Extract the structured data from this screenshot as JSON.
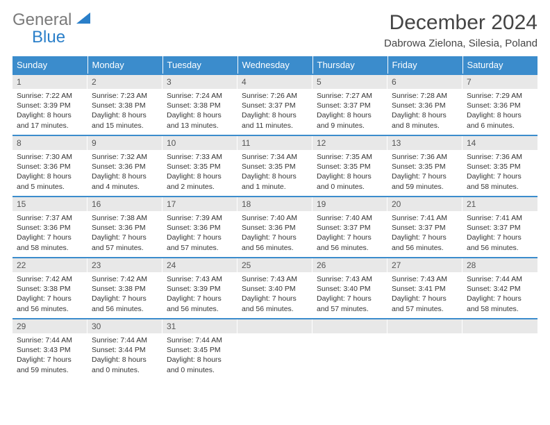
{
  "logo": {
    "line1": "General",
    "line2": "Blue"
  },
  "title": "December 2024",
  "location": "Dabrowa Zielona, Silesia, Poland",
  "colors": {
    "header_bg": "#3b8ccc",
    "header_fg": "#ffffff",
    "daynum_bg": "#e8e8e8",
    "row_border": "#3b8ccc",
    "logo_gray": "#7a7a7a",
    "logo_blue": "#2a7fc9"
  },
  "weekdays": [
    "Sunday",
    "Monday",
    "Tuesday",
    "Wednesday",
    "Thursday",
    "Friday",
    "Saturday"
  ],
  "weeks": [
    [
      {
        "n": "1",
        "sunrise": "7:22 AM",
        "sunset": "3:39 PM",
        "daylight": "8 hours and 17 minutes."
      },
      {
        "n": "2",
        "sunrise": "7:23 AM",
        "sunset": "3:38 PM",
        "daylight": "8 hours and 15 minutes."
      },
      {
        "n": "3",
        "sunrise": "7:24 AM",
        "sunset": "3:38 PM",
        "daylight": "8 hours and 13 minutes."
      },
      {
        "n": "4",
        "sunrise": "7:26 AM",
        "sunset": "3:37 PM",
        "daylight": "8 hours and 11 minutes."
      },
      {
        "n": "5",
        "sunrise": "7:27 AM",
        "sunset": "3:37 PM",
        "daylight": "8 hours and 9 minutes."
      },
      {
        "n": "6",
        "sunrise": "7:28 AM",
        "sunset": "3:36 PM",
        "daylight": "8 hours and 8 minutes."
      },
      {
        "n": "7",
        "sunrise": "7:29 AM",
        "sunset": "3:36 PM",
        "daylight": "8 hours and 6 minutes."
      }
    ],
    [
      {
        "n": "8",
        "sunrise": "7:30 AM",
        "sunset": "3:36 PM",
        "daylight": "8 hours and 5 minutes."
      },
      {
        "n": "9",
        "sunrise": "7:32 AM",
        "sunset": "3:36 PM",
        "daylight": "8 hours and 4 minutes."
      },
      {
        "n": "10",
        "sunrise": "7:33 AM",
        "sunset": "3:35 PM",
        "daylight": "8 hours and 2 minutes."
      },
      {
        "n": "11",
        "sunrise": "7:34 AM",
        "sunset": "3:35 PM",
        "daylight": "8 hours and 1 minute."
      },
      {
        "n": "12",
        "sunrise": "7:35 AM",
        "sunset": "3:35 PM",
        "daylight": "8 hours and 0 minutes."
      },
      {
        "n": "13",
        "sunrise": "7:36 AM",
        "sunset": "3:35 PM",
        "daylight": "7 hours and 59 minutes."
      },
      {
        "n": "14",
        "sunrise": "7:36 AM",
        "sunset": "3:35 PM",
        "daylight": "7 hours and 58 minutes."
      }
    ],
    [
      {
        "n": "15",
        "sunrise": "7:37 AM",
        "sunset": "3:36 PM",
        "daylight": "7 hours and 58 minutes."
      },
      {
        "n": "16",
        "sunrise": "7:38 AM",
        "sunset": "3:36 PM",
        "daylight": "7 hours and 57 minutes."
      },
      {
        "n": "17",
        "sunrise": "7:39 AM",
        "sunset": "3:36 PM",
        "daylight": "7 hours and 57 minutes."
      },
      {
        "n": "18",
        "sunrise": "7:40 AM",
        "sunset": "3:36 PM",
        "daylight": "7 hours and 56 minutes."
      },
      {
        "n": "19",
        "sunrise": "7:40 AM",
        "sunset": "3:37 PM",
        "daylight": "7 hours and 56 minutes."
      },
      {
        "n": "20",
        "sunrise": "7:41 AM",
        "sunset": "3:37 PM",
        "daylight": "7 hours and 56 minutes."
      },
      {
        "n": "21",
        "sunrise": "7:41 AM",
        "sunset": "3:37 PM",
        "daylight": "7 hours and 56 minutes."
      }
    ],
    [
      {
        "n": "22",
        "sunrise": "7:42 AM",
        "sunset": "3:38 PM",
        "daylight": "7 hours and 56 minutes."
      },
      {
        "n": "23",
        "sunrise": "7:42 AM",
        "sunset": "3:38 PM",
        "daylight": "7 hours and 56 minutes."
      },
      {
        "n": "24",
        "sunrise": "7:43 AM",
        "sunset": "3:39 PM",
        "daylight": "7 hours and 56 minutes."
      },
      {
        "n": "25",
        "sunrise": "7:43 AM",
        "sunset": "3:40 PM",
        "daylight": "7 hours and 56 minutes."
      },
      {
        "n": "26",
        "sunrise": "7:43 AM",
        "sunset": "3:40 PM",
        "daylight": "7 hours and 57 minutes."
      },
      {
        "n": "27",
        "sunrise": "7:43 AM",
        "sunset": "3:41 PM",
        "daylight": "7 hours and 57 minutes."
      },
      {
        "n": "28",
        "sunrise": "7:44 AM",
        "sunset": "3:42 PM",
        "daylight": "7 hours and 58 minutes."
      }
    ],
    [
      {
        "n": "29",
        "sunrise": "7:44 AM",
        "sunset": "3:43 PM",
        "daylight": "7 hours and 59 minutes."
      },
      {
        "n": "30",
        "sunrise": "7:44 AM",
        "sunset": "3:44 PM",
        "daylight": "8 hours and 0 minutes."
      },
      {
        "n": "31",
        "sunrise": "7:44 AM",
        "sunset": "3:45 PM",
        "daylight": "8 hours and 0 minutes."
      },
      null,
      null,
      null,
      null
    ]
  ],
  "labels": {
    "sunrise": "Sunrise:",
    "sunset": "Sunset:",
    "daylight": "Daylight:"
  }
}
